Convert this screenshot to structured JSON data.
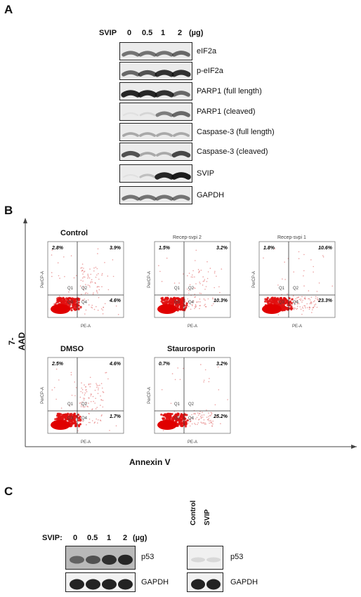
{
  "panels": {
    "a": "A",
    "b": "B",
    "c": "C"
  },
  "panel_a": {
    "dose_label": "SVIP",
    "doses": [
      "0",
      "0.5",
      "1",
      "2"
    ],
    "unit": "(µg)",
    "bands": [
      {
        "label": "eIF2a",
        "intensity": [
          0.55,
          0.55,
          0.55,
          0.6
        ]
      },
      {
        "label": "p-eIF2a",
        "intensity": [
          0.6,
          0.7,
          0.85,
          0.85
        ]
      },
      {
        "label": "PARP1 (full length)",
        "intensity": [
          0.9,
          0.9,
          0.85,
          0.6
        ]
      },
      {
        "label": "PARP1 (cleaved)",
        "intensity": [
          0.05,
          0.1,
          0.5,
          0.6
        ]
      },
      {
        "label": "Caspase-3 (full length)",
        "intensity": [
          0.3,
          0.3,
          0.3,
          0.3
        ]
      },
      {
        "label": "Caspase-3 (cleaved)",
        "intensity": [
          0.7,
          0.3,
          0.3,
          0.75
        ]
      },
      {
        "label": "SVIP",
        "intensity": [
          0.0,
          0.2,
          0.9,
          0.95
        ]
      },
      {
        "label": "GAPDH",
        "intensity": [
          0.55,
          0.55,
          0.55,
          0.55
        ]
      }
    ]
  },
  "panel_b": {
    "y_axis": "7-AAD",
    "x_axis": "Annexin V",
    "plot_xlabel": "PE-A",
    "plot_ylabel": "PerCP-A",
    "quadrants": [
      "Q1",
      "Q2",
      "Q3",
      "Q4"
    ],
    "plots": [
      {
        "title": "Control",
        "title_style": "bold",
        "q1": "2.8%",
        "q2": "3.9%",
        "q4": "4.6%"
      },
      {
        "title": "Recep-svpi 2",
        "title_style": "small",
        "q1": "1.5%",
        "q2": "3.2%",
        "q4": "10.3%"
      },
      {
        "title": "Recep-svpi 1",
        "title_style": "small",
        "q1": "1.8%",
        "q2": "10.6%",
        "q4": "23.3%"
      },
      {
        "title": "DMSO",
        "title_style": "bold",
        "q1": "2.5%",
        "q2": "4.6%",
        "q4": "1.7%"
      },
      {
        "title": "Staurosporin",
        "title_style": "bold",
        "q1": "0.7%",
        "q2": "3.2%",
        "q4": "25.2%"
      }
    ]
  },
  "panel_c": {
    "left": {
      "dose_label": "SVIP:",
      "doses": [
        "0",
        "0.5",
        "1",
        "2"
      ],
      "unit": "(µg)",
      "bands": [
        {
          "label": "p53",
          "intensity": [
            0.5,
            0.6,
            0.8,
            0.85
          ]
        },
        {
          "label": "GAPDH",
          "intensity": [
            0.9,
            0.9,
            0.9,
            0.9
          ]
        }
      ]
    },
    "right": {
      "lanes": [
        "Control",
        "SVIP"
      ],
      "bands": [
        {
          "label": "p53",
          "intensity": [
            0.1,
            0.1
          ]
        },
        {
          "label": "GAPDH",
          "intensity": [
            0.9,
            0.9
          ]
        }
      ]
    }
  }
}
